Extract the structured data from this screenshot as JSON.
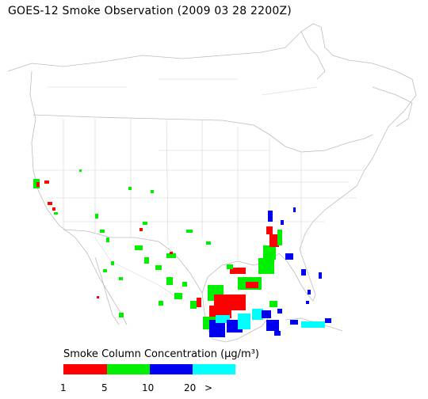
{
  "title": "GOES-12 Smoke Observation (2009 03 28  2200Z)",
  "legend": {
    "title": "Smoke Column Concentration (μg/m³)",
    "bins": [
      {
        "label": "1",
        "color": "#ff0000"
      },
      {
        "label": "5",
        "color": "#00ee00"
      },
      {
        "label": "10",
        "color": "#0000ee"
      },
      {
        "label": "20",
        "color": "#00ffff"
      }
    ],
    "end_label": ">"
  }
}
